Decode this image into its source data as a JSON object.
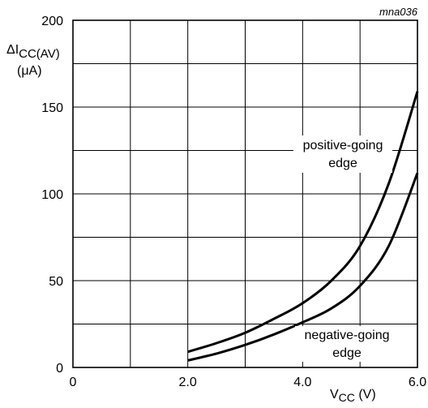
{
  "chart_data": {
    "type": "line",
    "figure_code": "mna036",
    "ylabel_main": "ΔI",
    "ylabel_sub": "CC(AV)",
    "ylabel_unit": "(μA)",
    "xlabel_main": "V",
    "xlabel_sub": "CC",
    "xlabel_unit": " (V)",
    "xlim": [
      0,
      6.0
    ],
    "ylim": [
      0,
      200
    ],
    "x_ticks": [
      0,
      2.0,
      4.0,
      6.0
    ],
    "x_tick_labels": [
      "0",
      "2.0",
      "4.0",
      "6.0"
    ],
    "y_ticks": [
      0,
      50,
      100,
      150,
      200
    ],
    "y_tick_labels": [
      "0",
      "50",
      "100",
      "150",
      "200"
    ],
    "x_grid_step": 1.0,
    "y_grid_step": 25,
    "grid": true,
    "series": [
      {
        "label_line1": "positive-going",
        "label_line2": "edge",
        "x": [
          2.0,
          2.5,
          3.0,
          3.5,
          4.0,
          4.5,
          5.0,
          5.5,
          6.0
        ],
        "y": [
          9,
          14,
          20,
          28,
          37,
          50,
          70,
          106,
          159
        ]
      },
      {
        "label_line1": "negative-going",
        "label_line2": "edge",
        "x": [
          2.0,
          2.5,
          3.0,
          3.5,
          4.0,
          4.5,
          5.0,
          5.5,
          6.0
        ],
        "y": [
          4,
          8,
          13,
          19,
          26,
          34,
          47,
          70,
          112
        ]
      }
    ]
  }
}
